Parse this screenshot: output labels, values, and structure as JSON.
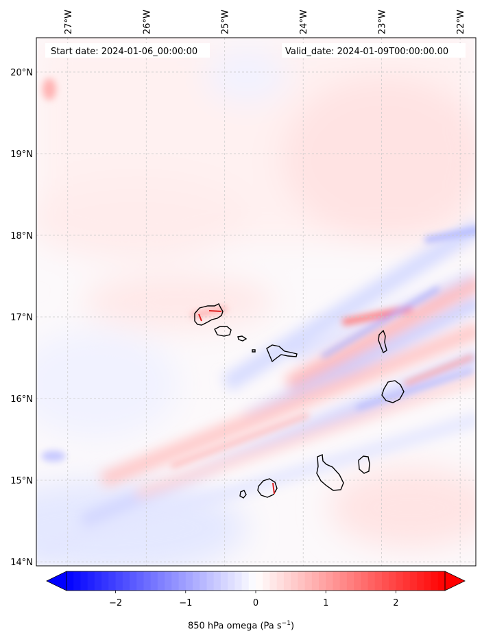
{
  "map": {
    "start_date_text": "Start date: 2024-01-06_00:00:00",
    "valid_date_text": "Valid_date: 2024-01-09T00:00:00.00",
    "lon_ticks": [
      {
        "value": -27,
        "label": "27°W"
      },
      {
        "value": -26,
        "label": "26°W"
      },
      {
        "value": -25,
        "label": "25°W"
      },
      {
        "value": -24,
        "label": "24°W"
      },
      {
        "value": -23,
        "label": "23°W"
      },
      {
        "value": -22,
        "label": "22°W"
      }
    ],
    "lat_ticks": [
      {
        "value": 20,
        "label": "20°N"
      },
      {
        "value": 19,
        "label": "19°N"
      },
      {
        "value": 18,
        "label": "18°N"
      },
      {
        "value": 17,
        "label": "17°N"
      },
      {
        "value": 16,
        "label": "16°N"
      },
      {
        "value": 15,
        "label": "15°N"
      },
      {
        "value": 14,
        "label": "14°N"
      }
    ],
    "lon_range": [
      -27.4,
      -21.8
    ],
    "lat_range": [
      13.95,
      20.42
    ],
    "gridlines": true
  },
  "colorbar": {
    "min": -2.7,
    "max": 2.7,
    "extend": "both",
    "colormap": "bwr",
    "low_color": "#0000ff",
    "mid_color": "#ffffff",
    "high_color": "#ff0000",
    "ticks": [
      {
        "value": -2,
        "label": "−2"
      },
      {
        "value": -1,
        "label": "−1"
      },
      {
        "value": 0,
        "label": "0"
      },
      {
        "value": 1,
        "label": "1"
      },
      {
        "value": 2,
        "label": "2"
      }
    ],
    "label_main": "850 hPa omega (Pa s",
    "label_sup": "−1",
    "label_end": ")"
  }
}
